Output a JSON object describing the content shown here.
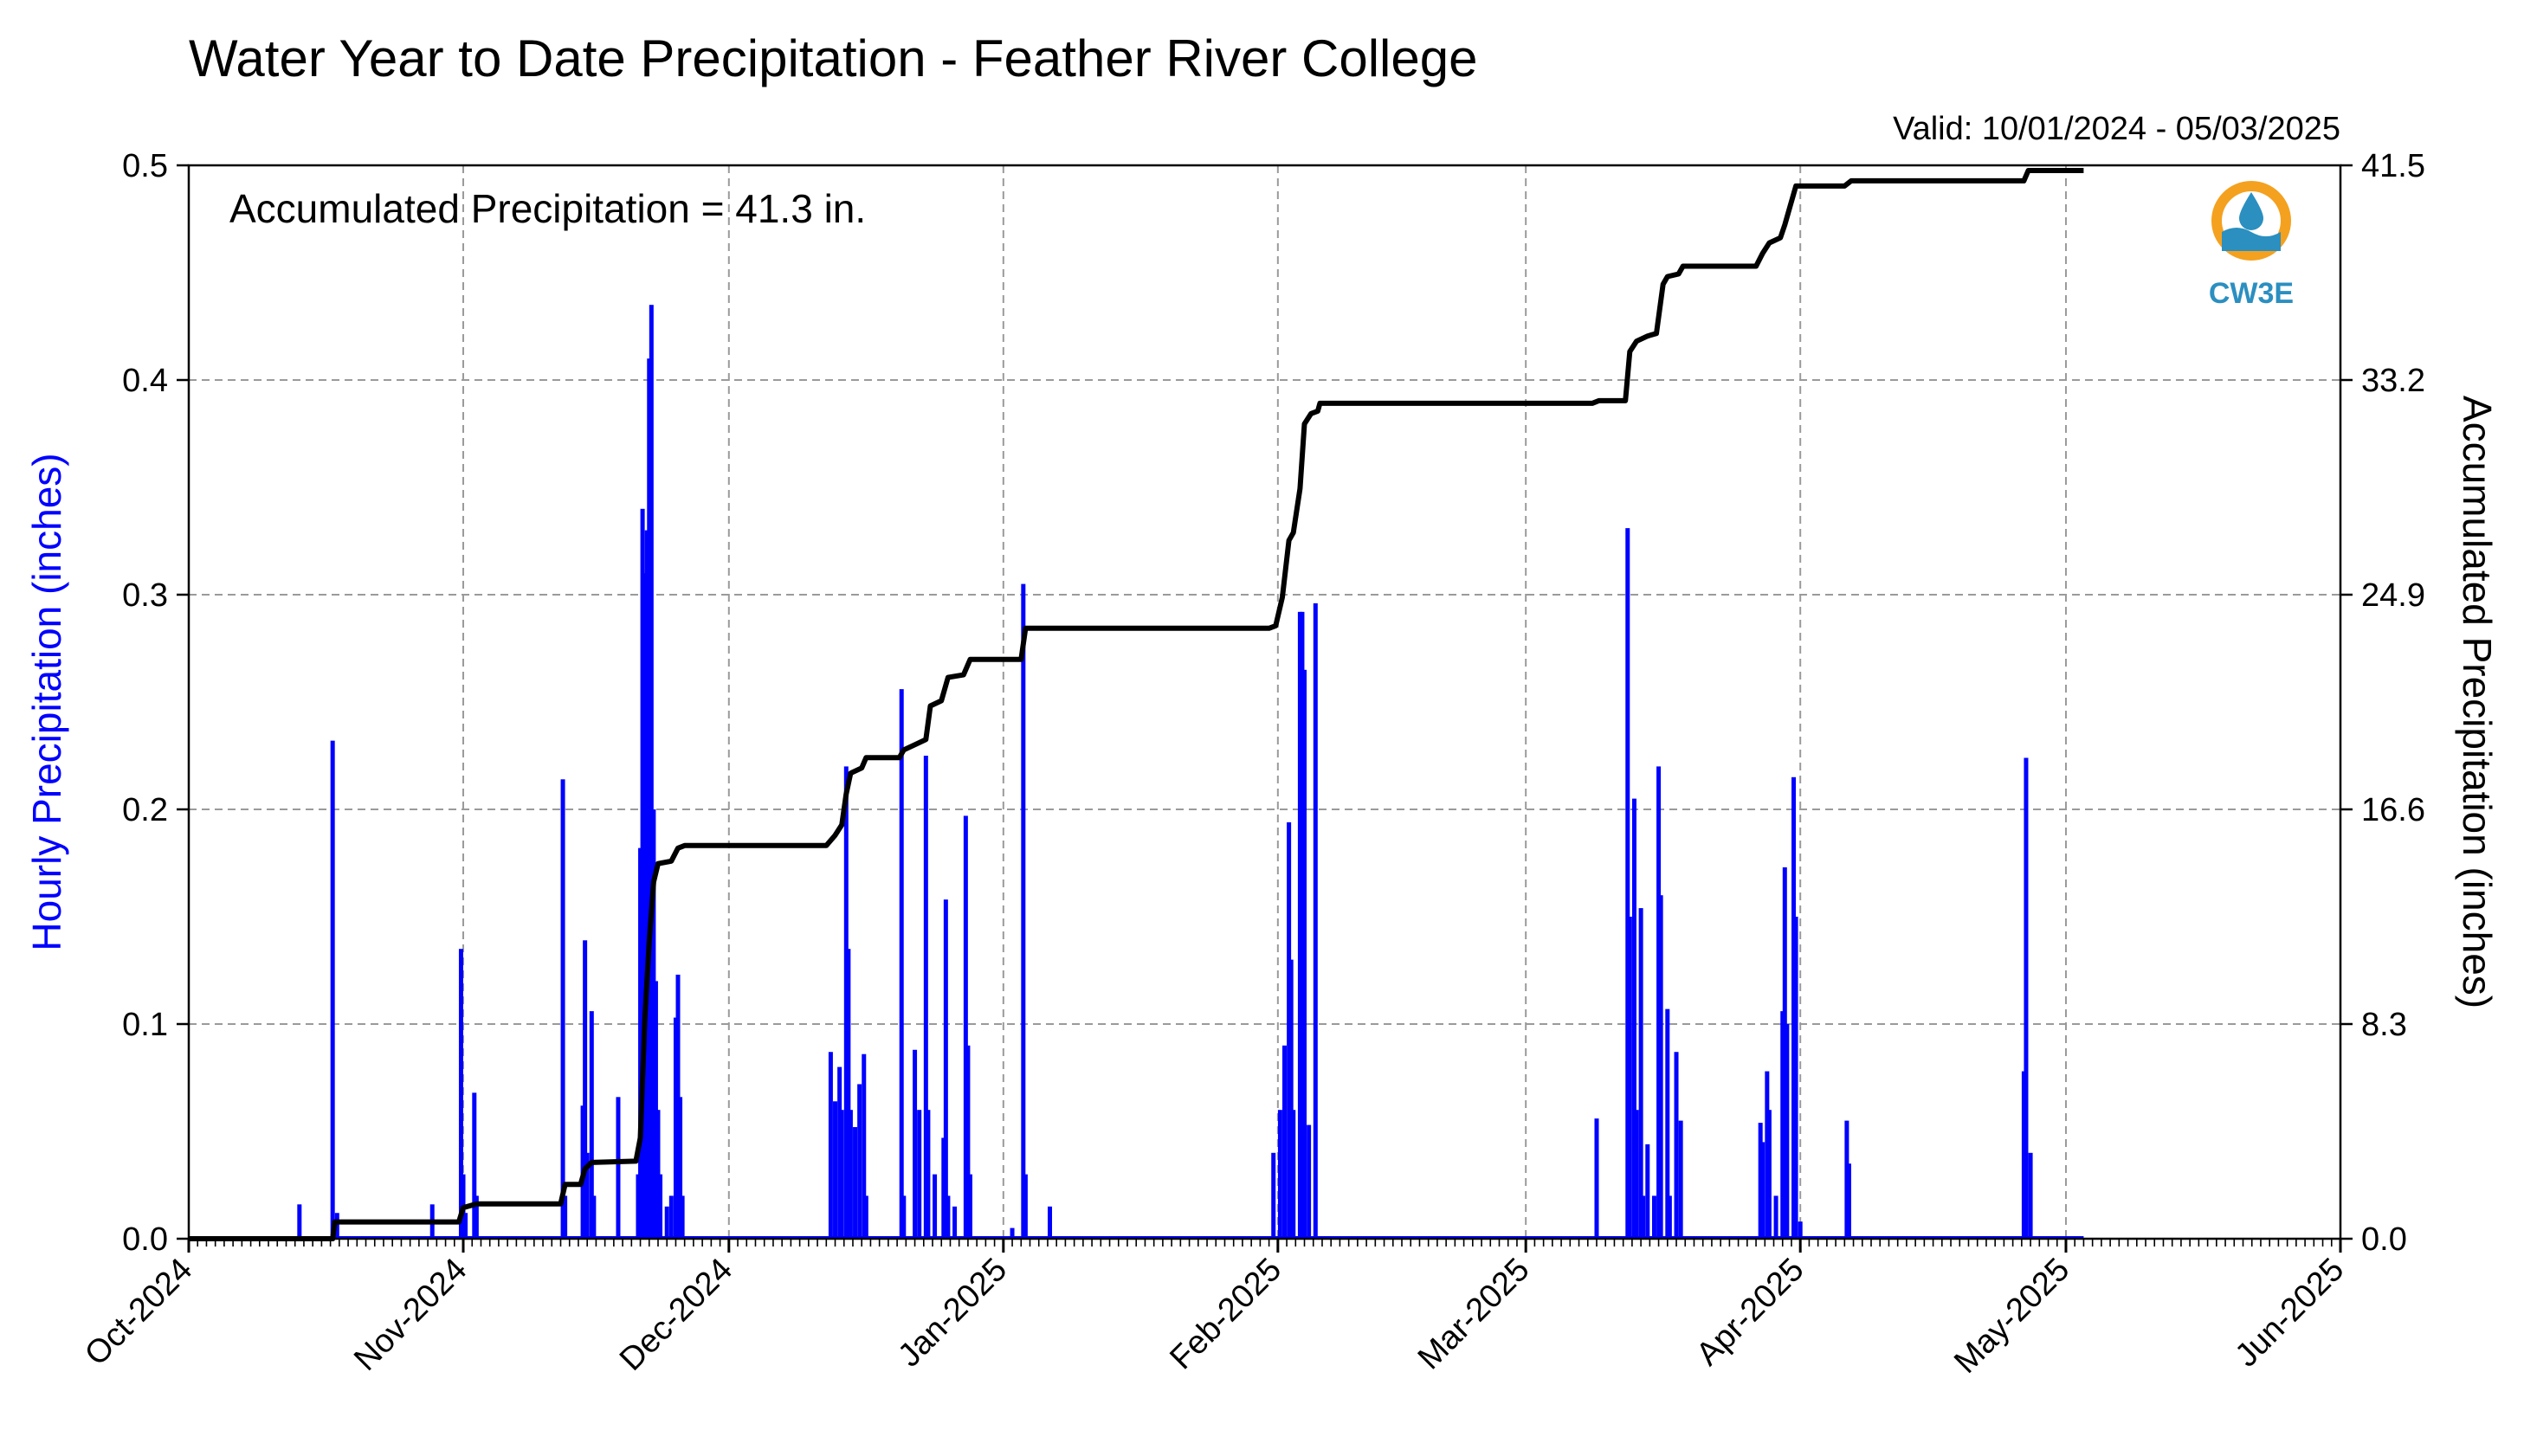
{
  "chart_data": {
    "type": "bar",
    "title": "Water Year to Date Precipitation - Feather River College",
    "valid_text": "Valid: 10/01/2024 - 05/03/2025",
    "annotation": "Accumulated Precipitation = 41.3 in.",
    "logo_text": "CW3E",
    "ylabel_left": "Hourly Precipitation (inches)",
    "ylabel_right": "Accumulated Precipitation (inches)",
    "ylim_left": [
      0,
      0.5
    ],
    "ylim_right": [
      0,
      41.5
    ],
    "yticks_left": [
      "0.0",
      "0.1",
      "0.2",
      "0.3",
      "0.4",
      "0.5"
    ],
    "yticks_right": [
      "0.0",
      "8.3",
      "16.6",
      "24.9",
      "33.2",
      "41.5"
    ],
    "xlim": [
      "2024-10-01",
      "2025-06-01"
    ],
    "xticks": [
      {
        "label": "Oct-2024",
        "date": "2024-10-01"
      },
      {
        "label": "Nov-2024",
        "date": "2024-11-01"
      },
      {
        "label": "Dec-2024",
        "date": "2024-12-01"
      },
      {
        "label": "Jan-2025",
        "date": "2025-01-01"
      },
      {
        "label": "Feb-2025",
        "date": "2025-02-01"
      },
      {
        "label": "Mar-2025",
        "date": "2025-03-01"
      },
      {
        "label": "Apr-2025",
        "date": "2025-04-01"
      },
      {
        "label": "May-2025",
        "date": "2025-05-01"
      },
      {
        "label": "Jun-2025",
        "date": "2025-06-01"
      }
    ],
    "grid": true,
    "colors": {
      "hourly": "#0000ff",
      "accumulated": "#000000",
      "logo_orange": "#f4a11f",
      "logo_blue": "#2b8fc0"
    },
    "series": [
      {
        "name": "Hourly Precipitation (inches)",
        "type": "bar",
        "points": [
          [
            "2024-10-13 12:00",
            0.016
          ],
          [
            "2024-10-17 06:00",
            0.232
          ],
          [
            "2024-10-17 18:00",
            0.012
          ],
          [
            "2024-10-28 12:00",
            0.016
          ],
          [
            "2024-10-31 18:00",
            0.135
          ],
          [
            "2024-11-01 00:00",
            0.03
          ],
          [
            "2024-11-01 06:00",
            0.012
          ],
          [
            "2024-11-02 06:00",
            0.068
          ],
          [
            "2024-11-02 12:00",
            0.02
          ],
          [
            "2024-11-12 06:00",
            0.214
          ],
          [
            "2024-11-12 12:00",
            0.02
          ],
          [
            "2024-11-14 12:00",
            0.062
          ],
          [
            "2024-11-14 18:00",
            0.139
          ],
          [
            "2024-11-15 00:00",
            0.04
          ],
          [
            "2024-11-15 12:00",
            0.106
          ],
          [
            "2024-11-15 18:00",
            0.02
          ],
          [
            "2024-11-18 12:00",
            0.066
          ],
          [
            "2024-11-20 18:00",
            0.03
          ],
          [
            "2024-11-21 00:00",
            0.182
          ],
          [
            "2024-11-21 06:00",
            0.34
          ],
          [
            "2024-11-21 12:00",
            0.31
          ],
          [
            "2024-11-21 18:00",
            0.33
          ],
          [
            "2024-11-22 00:00",
            0.41
          ],
          [
            "2024-11-22 06:00",
            0.435
          ],
          [
            "2024-11-22 12:00",
            0.2
          ],
          [
            "2024-11-22 18:00",
            0.12
          ],
          [
            "2024-11-23 00:00",
            0.06
          ],
          [
            "2024-11-23 06:00",
            0.03
          ],
          [
            "2024-11-24 00:00",
            0.015
          ],
          [
            "2024-11-24 12:00",
            0.02
          ],
          [
            "2024-11-25 00:00",
            0.103
          ],
          [
            "2024-11-25 06:00",
            0.123
          ],
          [
            "2024-11-25 12:00",
            0.066
          ],
          [
            "2024-11-25 18:00",
            0.02
          ],
          [
            "2024-12-12 12:00",
            0.087
          ],
          [
            "2024-12-13 00:00",
            0.064
          ],
          [
            "2024-12-13 12:00",
            0.08
          ],
          [
            "2024-12-13 18:00",
            0.06
          ],
          [
            "2024-12-14 06:00",
            0.22
          ],
          [
            "2024-12-14 12:00",
            0.135
          ],
          [
            "2024-12-14 18:00",
            0.06
          ],
          [
            "2024-12-15 06:00",
            0.052
          ],
          [
            "2024-12-15 18:00",
            0.072
          ],
          [
            "2024-12-16 06:00",
            0.086
          ],
          [
            "2024-12-16 12:00",
            0.02
          ],
          [
            "2024-12-20 12:00",
            0.256
          ],
          [
            "2024-12-20 18:00",
            0.02
          ],
          [
            "2024-12-22 00:00",
            0.088
          ],
          [
            "2024-12-22 12:00",
            0.06
          ],
          [
            "2024-12-23 06:00",
            0.225
          ],
          [
            "2024-12-23 12:00",
            0.06
          ],
          [
            "2024-12-24 06:00",
            0.03
          ],
          [
            "2024-12-25 06:00",
            0.047
          ],
          [
            "2024-12-25 12:00",
            0.158
          ],
          [
            "2024-12-25 18:00",
            0.02
          ],
          [
            "2024-12-26 12:00",
            0.015
          ],
          [
            "2024-12-27 18:00",
            0.197
          ],
          [
            "2024-12-28 00:00",
            0.09
          ],
          [
            "2024-12-28 06:00",
            0.03
          ],
          [
            "2025-01-02 00:00",
            0.005
          ],
          [
            "2025-01-03 06:00",
            0.305
          ],
          [
            "2025-01-03 12:00",
            0.03
          ],
          [
            "2025-01-06 06:00",
            0.015
          ],
          [
            "2025-01-31 12:00",
            0.04
          ],
          [
            "2025-02-01 06:00",
            0.06
          ],
          [
            "2025-02-01 18:00",
            0.09
          ],
          [
            "2025-02-02 06:00",
            0.194
          ],
          [
            "2025-02-02 12:00",
            0.13
          ],
          [
            "2025-02-02 18:00",
            0.06
          ],
          [
            "2025-02-03 12:00",
            0.292
          ],
          [
            "2025-02-03 18:00",
            0.292
          ],
          [
            "2025-02-04 00:00",
            0.265
          ],
          [
            "2025-02-04 12:00",
            0.053
          ],
          [
            "2025-02-05 06:00",
            0.296
          ],
          [
            "2025-03-09 00:00",
            0.056
          ],
          [
            "2025-03-12 12:00",
            0.331
          ],
          [
            "2025-03-12 18:00",
            0.15
          ],
          [
            "2025-03-13 06:00",
            0.205
          ],
          [
            "2025-03-13 12:00",
            0.06
          ],
          [
            "2025-03-14 00:00",
            0.154
          ],
          [
            "2025-03-14 06:00",
            0.02
          ],
          [
            "2025-03-14 18:00",
            0.044
          ],
          [
            "2025-03-15 12:00",
            0.02
          ],
          [
            "2025-03-16 00:00",
            0.22
          ],
          [
            "2025-03-16 06:00",
            0.16
          ],
          [
            "2025-03-17 00:00",
            0.107
          ],
          [
            "2025-03-17 06:00",
            0.02
          ],
          [
            "2025-03-18 00:00",
            0.087
          ],
          [
            "2025-03-18 12:00",
            0.055
          ],
          [
            "2025-03-27 12:00",
            0.054
          ],
          [
            "2025-03-27 18:00",
            0.045
          ],
          [
            "2025-03-28 06:00",
            0.078
          ],
          [
            "2025-03-28 12:00",
            0.06
          ],
          [
            "2025-03-29 06:00",
            0.02
          ],
          [
            "2025-03-30 00:00",
            0.106
          ],
          [
            "2025-03-30 06:00",
            0.173
          ],
          [
            "2025-03-30 12:00",
            0.1
          ],
          [
            "2025-03-31 06:00",
            0.215
          ],
          [
            "2025-03-31 12:00",
            0.15
          ],
          [
            "2025-04-01 00:00",
            0.008
          ],
          [
            "2025-04-06 06:00",
            0.055
          ],
          [
            "2025-04-06 12:00",
            0.035
          ],
          [
            "2025-04-26 06:00",
            0.078
          ],
          [
            "2025-04-26 12:00",
            0.224
          ],
          [
            "2025-04-27 00:00",
            0.04
          ]
        ]
      },
      {
        "name": "Accumulated Precipitation (inches)",
        "type": "line",
        "points": [
          [
            "2024-10-01 00:00",
            0.0
          ],
          [
            "2024-10-13 12:00",
            0.0
          ],
          [
            "2024-10-17 06:00",
            0.0
          ],
          [
            "2024-10-17 12:00",
            0.65
          ],
          [
            "2024-10-31 12:00",
            0.65
          ],
          [
            "2024-11-01 00:00",
            1.2
          ],
          [
            "2024-11-02 12:00",
            1.35
          ],
          [
            "2024-11-12 00:00",
            1.35
          ],
          [
            "2024-11-12 12:00",
            2.1
          ],
          [
            "2024-11-14 06:00",
            2.1
          ],
          [
            "2024-11-14 18:00",
            2.7
          ],
          [
            "2024-11-15 12:00",
            2.95
          ],
          [
            "2024-11-20 12:00",
            3.0
          ],
          [
            "2024-11-21 00:00",
            3.9
          ],
          [
            "2024-11-21 12:00",
            8.5
          ],
          [
            "2024-11-22 00:00",
            11.5
          ],
          [
            "2024-11-22 12:00",
            13.8
          ],
          [
            "2024-11-23 00:00",
            14.5
          ],
          [
            "2024-11-24 12:00",
            14.6
          ],
          [
            "2024-11-25 06:00",
            15.1
          ],
          [
            "2024-11-26 00:00",
            15.2
          ],
          [
            "2024-12-12 00:00",
            15.2
          ],
          [
            "2024-12-13 00:00",
            15.6
          ],
          [
            "2024-12-13 18:00",
            16.0
          ],
          [
            "2024-12-14 06:00",
            17.2
          ],
          [
            "2024-12-14 18:00",
            18.0
          ],
          [
            "2024-12-16 00:00",
            18.2
          ],
          [
            "2024-12-16 12:00",
            18.6
          ],
          [
            "2024-12-20 06:00",
            18.6
          ],
          [
            "2024-12-20 18:00",
            18.9
          ],
          [
            "2024-12-22 00:00",
            19.1
          ],
          [
            "2024-12-23 06:00",
            19.3
          ],
          [
            "2024-12-23 18:00",
            20.6
          ],
          [
            "2024-12-25 00:00",
            20.8
          ],
          [
            "2024-12-25 18:00",
            21.7
          ],
          [
            "2024-12-27 12:00",
            21.8
          ],
          [
            "2024-12-28 06:00",
            22.4
          ],
          [
            "2025-01-03 00:00",
            22.4
          ],
          [
            "2025-01-03 12:00",
            23.6
          ],
          [
            "2025-01-31 00:00",
            23.6
          ],
          [
            "2025-01-31 18:00",
            23.7
          ],
          [
            "2025-02-01 12:00",
            24.8
          ],
          [
            "2025-02-02 06:00",
            27.0
          ],
          [
            "2025-02-02 18:00",
            27.3
          ],
          [
            "2025-02-03 12:00",
            29.0
          ],
          [
            "2025-02-04 00:00",
            31.5
          ],
          [
            "2025-02-04 18:00",
            31.9
          ],
          [
            "2025-02-05 12:00",
            32.0
          ],
          [
            "2025-02-05 18:00",
            32.3
          ],
          [
            "2025-03-08 12:00",
            32.3
          ],
          [
            "2025-03-09 06:00",
            32.4
          ],
          [
            "2025-03-12 06:00",
            32.4
          ],
          [
            "2025-03-12 18:00",
            34.3
          ],
          [
            "2025-03-13 12:00",
            34.7
          ],
          [
            "2025-03-14 18:00",
            34.9
          ],
          [
            "2025-03-15 18:00",
            35.0
          ],
          [
            "2025-03-16 12:00",
            36.9
          ],
          [
            "2025-03-17 00:00",
            37.2
          ],
          [
            "2025-03-18 06:00",
            37.3
          ],
          [
            "2025-03-18 18:00",
            37.6
          ],
          [
            "2025-03-27 00:00",
            37.6
          ],
          [
            "2025-03-27 18:00",
            38.1
          ],
          [
            "2025-03-28 12:00",
            38.5
          ],
          [
            "2025-03-29 18:00",
            38.7
          ],
          [
            "2025-03-30 06:00",
            39.2
          ],
          [
            "2025-03-30 18:00",
            39.8
          ],
          [
            "2025-03-31 12:00",
            40.7
          ],
          [
            "2025-04-06 00:00",
            40.7
          ],
          [
            "2025-04-06 18:00",
            40.9
          ],
          [
            "2025-04-26 06:00",
            40.9
          ],
          [
            "2025-04-26 18:00",
            41.3
          ],
          [
            "2025-05-03 00:00",
            41.3
          ]
        ]
      }
    ]
  }
}
